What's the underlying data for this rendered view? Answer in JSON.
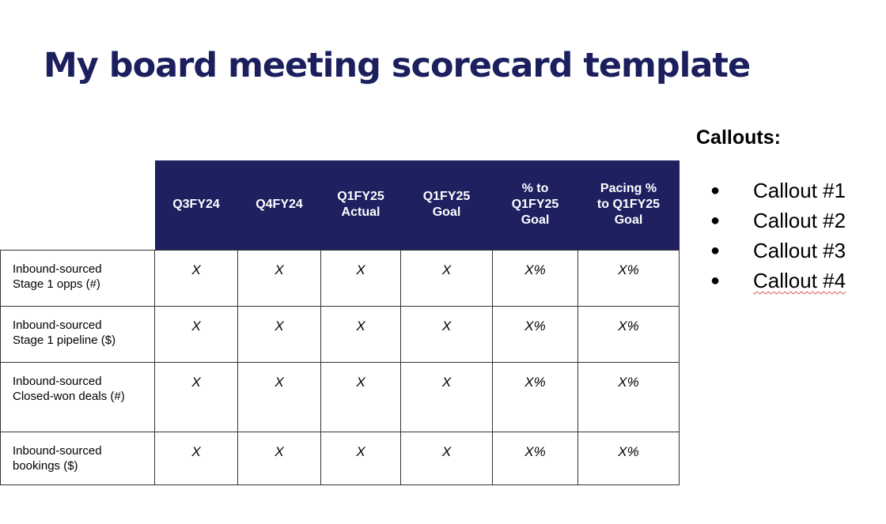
{
  "title": "My board meeting scorecard template",
  "table": {
    "columns": [
      "Q3FY24",
      "Q4FY24",
      "Q1FY25\nActual",
      "Q1FY25\nGoal",
      "% to\nQ1FY25\nGoal",
      "Pacing %\nto Q1FY25\nGoal"
    ],
    "rows": [
      {
        "label": "Inbound-sourced\nStage 1 opps (#)",
        "values": [
          "X",
          "X",
          "X",
          "X",
          "X%",
          "X%"
        ]
      },
      {
        "label": "Inbound-sourced\nStage 1 pipeline ($)",
        "values": [
          "X",
          "X",
          "X",
          "X",
          "X%",
          "X%"
        ]
      },
      {
        "label": "Inbound-sourced\nClosed-won deals (#)",
        "values": [
          "X",
          "X",
          "X",
          "X",
          "X%",
          "X%"
        ]
      },
      {
        "label": "Inbound-sourced\nbookings ($)",
        "values": [
          "X",
          "X",
          "X",
          "X",
          "X%",
          "X%"
        ]
      }
    ]
  },
  "callouts": {
    "heading": "Callouts:",
    "bullet": "●",
    "items": [
      "Callout #1",
      "Callout #2",
      "Callout #3",
      "Callout #4"
    ]
  },
  "colors": {
    "title": "#1c1f5e",
    "header_bg": "#1e2060",
    "header_text": "#ffffff",
    "spellcheck_underline": "#d9534f"
  }
}
